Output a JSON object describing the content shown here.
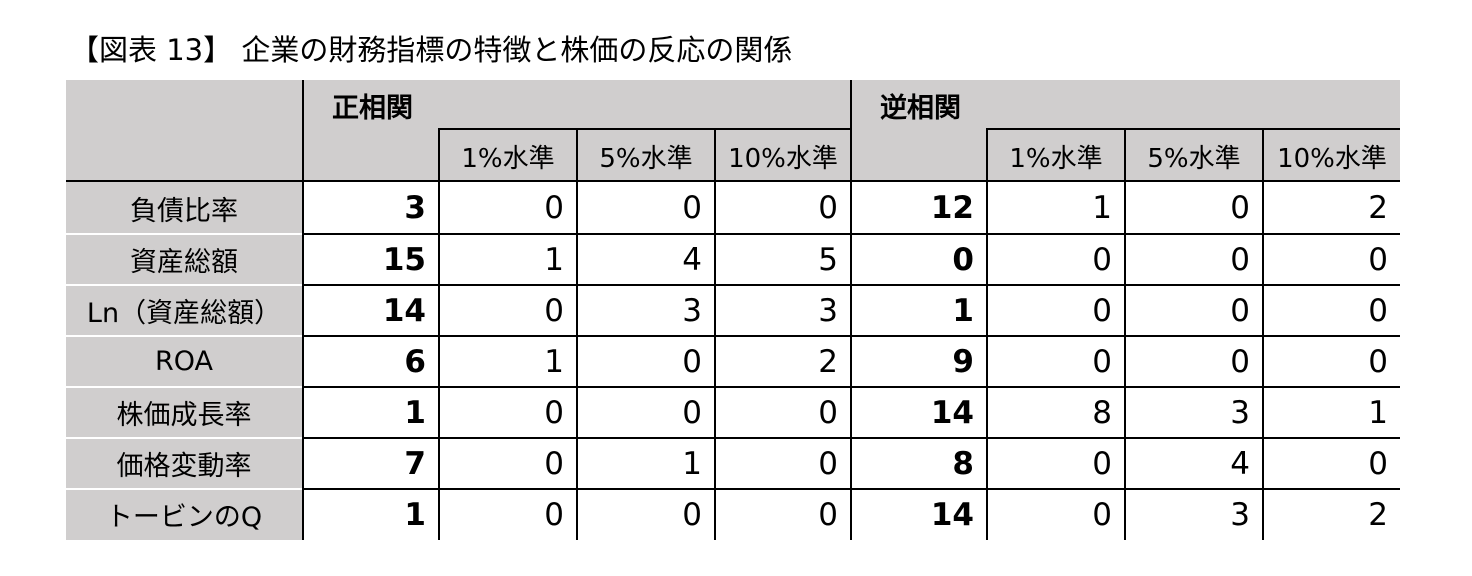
{
  "title": "【図表 13】 企業の財務指標の特徴と株価の反応の関係",
  "table": {
    "groups": [
      {
        "label": "正相関"
      },
      {
        "label": "逆相関"
      }
    ],
    "sub_headers": [
      "1%水準",
      "5%水準",
      "10%水準",
      "1%水準",
      "5%水準",
      "10%水準"
    ],
    "rows": [
      {
        "label": "負債比率",
        "values": [
          "3",
          "0",
          "0",
          "0",
          "12",
          "1",
          "0",
          "2"
        ]
      },
      {
        "label": "資産総額",
        "values": [
          "15",
          "1",
          "4",
          "5",
          "0",
          "0",
          "0",
          "0"
        ]
      },
      {
        "label": "Ln（資産総額）",
        "values": [
          "14",
          "0",
          "3",
          "3",
          "1",
          "0",
          "0",
          "0"
        ]
      },
      {
        "label": "ROA",
        "values": [
          "6",
          "1",
          "0",
          "2",
          "9",
          "0",
          "0",
          "0"
        ]
      },
      {
        "label": "株価成長率",
        "values": [
          "1",
          "0",
          "0",
          "0",
          "14",
          "8",
          "3",
          "1"
        ]
      },
      {
        "label": "価格変動率",
        "values": [
          "7",
          "0",
          "1",
          "0",
          "8",
          "0",
          "4",
          "0"
        ]
      },
      {
        "label": "トービンのQ",
        "values": [
          "1",
          "0",
          "0",
          "0",
          "14",
          "0",
          "3",
          "2"
        ]
      }
    ]
  },
  "colors": {
    "header_fill": "#d0cece",
    "border": "#000000"
  }
}
